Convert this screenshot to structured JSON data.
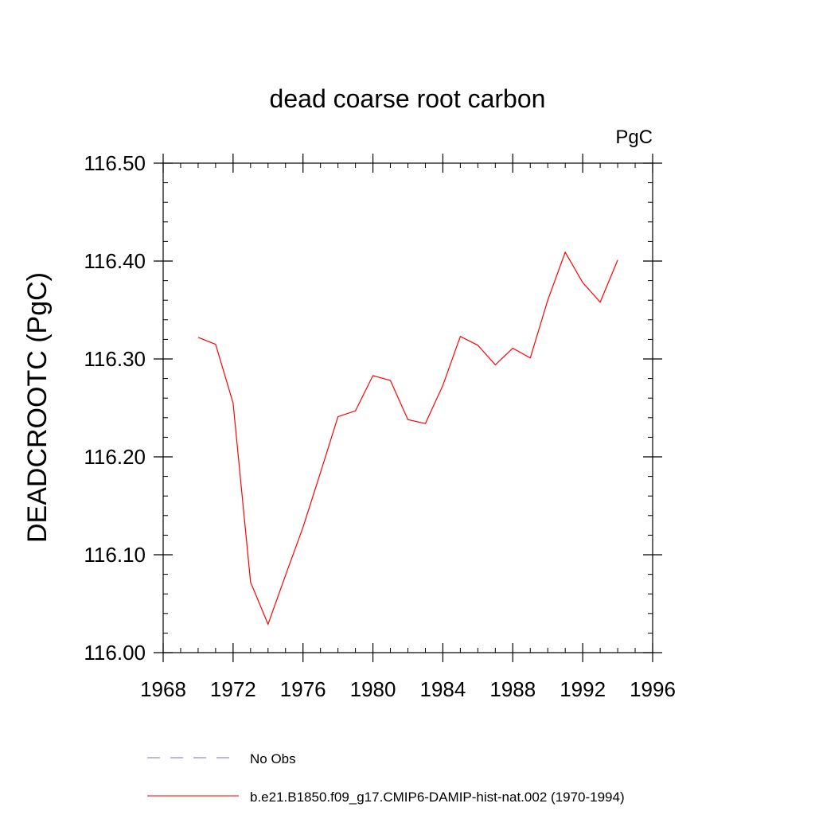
{
  "chart_data": {
    "type": "line",
    "title": "dead coarse root carbon",
    "units_label": "PgC",
    "ylabel": "DEADCROOTC  (PgC)",
    "xlabel": "",
    "xlim": [
      1968,
      1996
    ],
    "ylim": [
      116.0,
      116.5
    ],
    "x_ticks": [
      1968,
      1972,
      1976,
      1980,
      1984,
      1988,
      1992,
      1996
    ],
    "x_tick_labels": [
      "1968",
      "1972",
      "1976",
      "1980",
      "1984",
      "1988",
      "1992",
      "1996"
    ],
    "y_ticks": [
      116.0,
      116.1,
      116.2,
      116.3,
      116.4,
      116.5
    ],
    "y_tick_labels": [
      "116.00",
      "116.10",
      "116.20",
      "116.30",
      "116.40",
      "116.50"
    ],
    "grid": false,
    "legend_position": "bottom",
    "series": [
      {
        "name": "No Obs",
        "color": "#7b6fc4",
        "dash": "dashed",
        "x": [],
        "y": []
      },
      {
        "name": "b.e21.B1850.f09_g17.CMIP6-DAMIP-hist-nat.002 (1970-1994)",
        "color": "#ff0000",
        "dash": "solid",
        "x": [
          1970,
          1971,
          1972,
          1973,
          1974,
          1975,
          1976,
          1977,
          1978,
          1979,
          1980,
          1981,
          1982,
          1983,
          1984,
          1985,
          1986,
          1987,
          1988,
          1989,
          1990,
          1991,
          1992,
          1993,
          1994
        ],
        "y": [
          116.322,
          116.315,
          116.255,
          116.072,
          116.029,
          116.079,
          116.128,
          116.184,
          116.241,
          116.247,
          116.283,
          116.278,
          116.238,
          116.234,
          116.273,
          116.323,
          116.314,
          116.294,
          116.311,
          116.301,
          116.36,
          116.409,
          116.378,
          116.358,
          116.401
        ]
      }
    ]
  }
}
